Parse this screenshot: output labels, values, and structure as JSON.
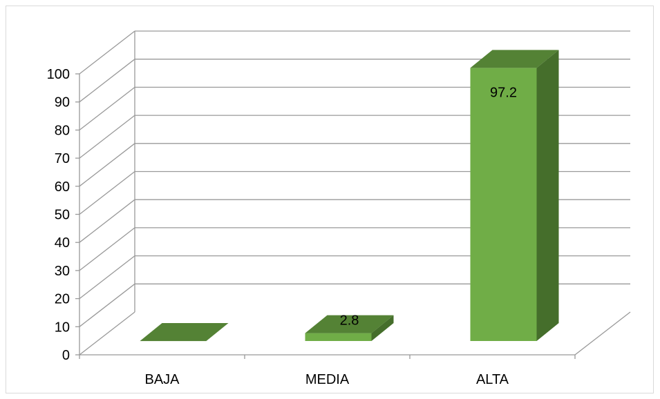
{
  "chart_data": {
    "type": "bar",
    "categories": [
      "BAJA",
      "MEDIA",
      "ALTA"
    ],
    "values": [
      0,
      2.8,
      97.2
    ],
    "data_labels": [
      "",
      "2.8",
      "97.2"
    ],
    "ylim": [
      0,
      100
    ],
    "yticks": [
      "0",
      "10",
      "20",
      "30",
      "40",
      "50",
      "60",
      "70",
      "80",
      "90",
      "100"
    ],
    "grid": true,
    "style": "3d-column",
    "colors": {
      "front": "#70ad47",
      "top": "#548235",
      "side": "#456e2b",
      "grid": "#999999"
    }
  }
}
